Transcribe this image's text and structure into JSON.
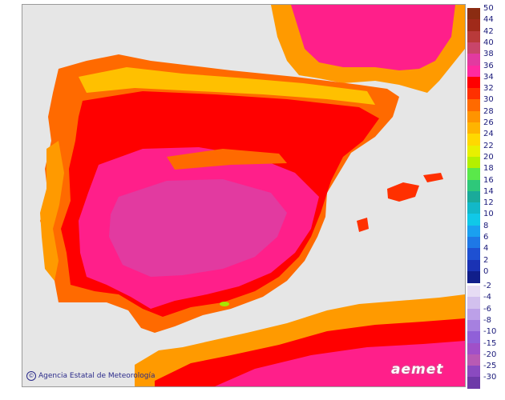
{
  "map": {
    "credit": "Agencia Estatal de Meteorología",
    "brand": "aemet",
    "colors": {
      "background": "#e6e6e6",
      "hot_34": "#ff0000",
      "hot_36": "#ff1f8a",
      "hot_38": "#e23aa0",
      "warm_32": "#ff3000",
      "warm_30": "#ff6a00",
      "warm_28": "#ff9a00",
      "warm_26": "#ffc000",
      "warm_24": "#ffe000",
      "mild_22": "#d4f000",
      "mild_20": "#a8e600"
    }
  },
  "legend": {
    "warm": [
      {
        "label": "50",
        "color": "#8b2c12"
      },
      {
        "label": "44",
        "color": "#a02a1a"
      },
      {
        "label": "42",
        "color": "#b93a3a"
      },
      {
        "label": "40",
        "color": "#c8456a"
      },
      {
        "label": "38",
        "color": "#e23aa0"
      },
      {
        "label": "36",
        "color": "#ff2aa0"
      },
      {
        "label": "34",
        "color": "#ff0000"
      },
      {
        "label": "32",
        "color": "#ff3000"
      },
      {
        "label": "30",
        "color": "#ff6a00"
      },
      {
        "label": "28",
        "color": "#ff9400"
      },
      {
        "label": "26",
        "color": "#ffb400"
      },
      {
        "label": "24",
        "color": "#ffd800"
      },
      {
        "label": "22",
        "color": "#e8f000"
      },
      {
        "label": "20",
        "color": "#b4f000"
      },
      {
        "label": "18",
        "color": "#5ae84a"
      },
      {
        "label": "16",
        "color": "#2ec87a"
      },
      {
        "label": "14",
        "color": "#1aaa9a"
      },
      {
        "label": "12",
        "color": "#12b8c8"
      },
      {
        "label": "10",
        "color": "#10c8e8"
      },
      {
        "label": "8",
        "color": "#1aa0f0"
      },
      {
        "label": "6",
        "color": "#1e78e6"
      },
      {
        "label": "4",
        "color": "#1e50d2"
      },
      {
        "label": "2",
        "color": "#1a32b4"
      },
      {
        "label": "0",
        "color": "#101e8a"
      }
    ],
    "cold": [
      {
        "label": "-2",
        "color": "#e6dcf4"
      },
      {
        "label": "-4",
        "color": "#d2c0ee"
      },
      {
        "label": "-6",
        "color": "#bca0e8"
      },
      {
        "label": "-8",
        "color": "#a680e0"
      },
      {
        "label": "-10",
        "color": "#9060d8"
      },
      {
        "label": "-15",
        "color": "#a050c8"
      },
      {
        "label": "-20",
        "color": "#b85ab4"
      },
      {
        "label": "-25",
        "color": "#8a4ac0"
      },
      {
        "label": "-30",
        "color": "#6e3aa8"
      }
    ]
  }
}
